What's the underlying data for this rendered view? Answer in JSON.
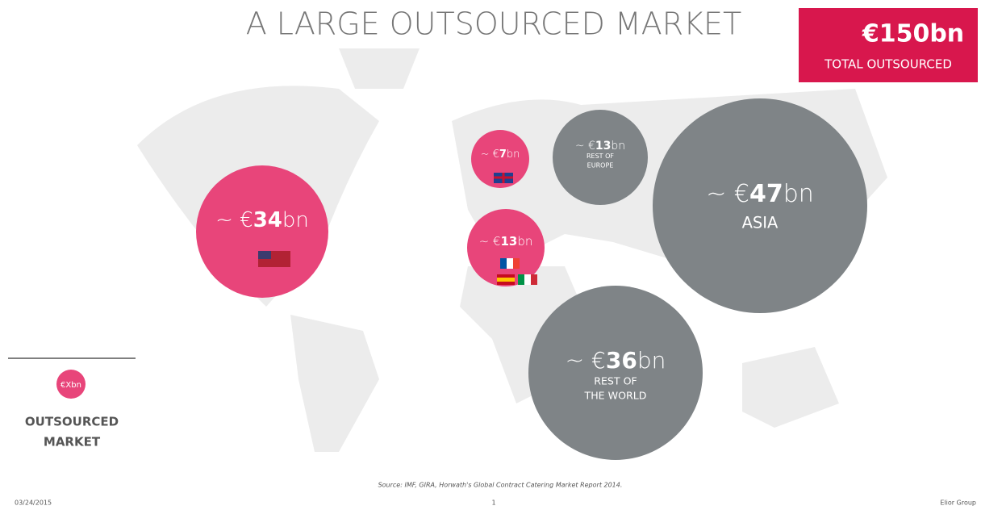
{
  "header": {
    "title": "A LARGE OUTSOURCED MARKET",
    "total": {
      "value": "€150bn",
      "label": "TOTAL OUTSOURCED"
    }
  },
  "bubbles": [
    {
      "prefix": "~ €",
      "amount": "34",
      "unit": "bn",
      "lines": []
    },
    {
      "prefix": "~ €",
      "amount": "7",
      "unit": "bn",
      "lines": []
    },
    {
      "prefix": "~ €",
      "amount": "13",
      "unit": "bn",
      "lines": []
    },
    {
      "prefix": "~ €",
      "amount": "13",
      "unit": "bn",
      "lines": [
        "REST OF",
        "EUROPE"
      ]
    },
    {
      "prefix": "~ €",
      "amount": "47",
      "unit": "bn",
      "lines": [
        "ASIA"
      ]
    },
    {
      "prefix": "~ €",
      "amount": "36",
      "unit": "bn",
      "lines": [
        "REST OF",
        "THE WORLD"
      ]
    }
  ],
  "legend": {
    "symbol": "€Xbn",
    "line1": "OUTSOURCED",
    "line2": "MARKET"
  },
  "footer": {
    "source": "Source: IMF, GIRA, Horwath's Global Contract Catering Market Report 2014.",
    "date": "03/24/2015",
    "page": "1",
    "company": "Elior Group"
  }
}
